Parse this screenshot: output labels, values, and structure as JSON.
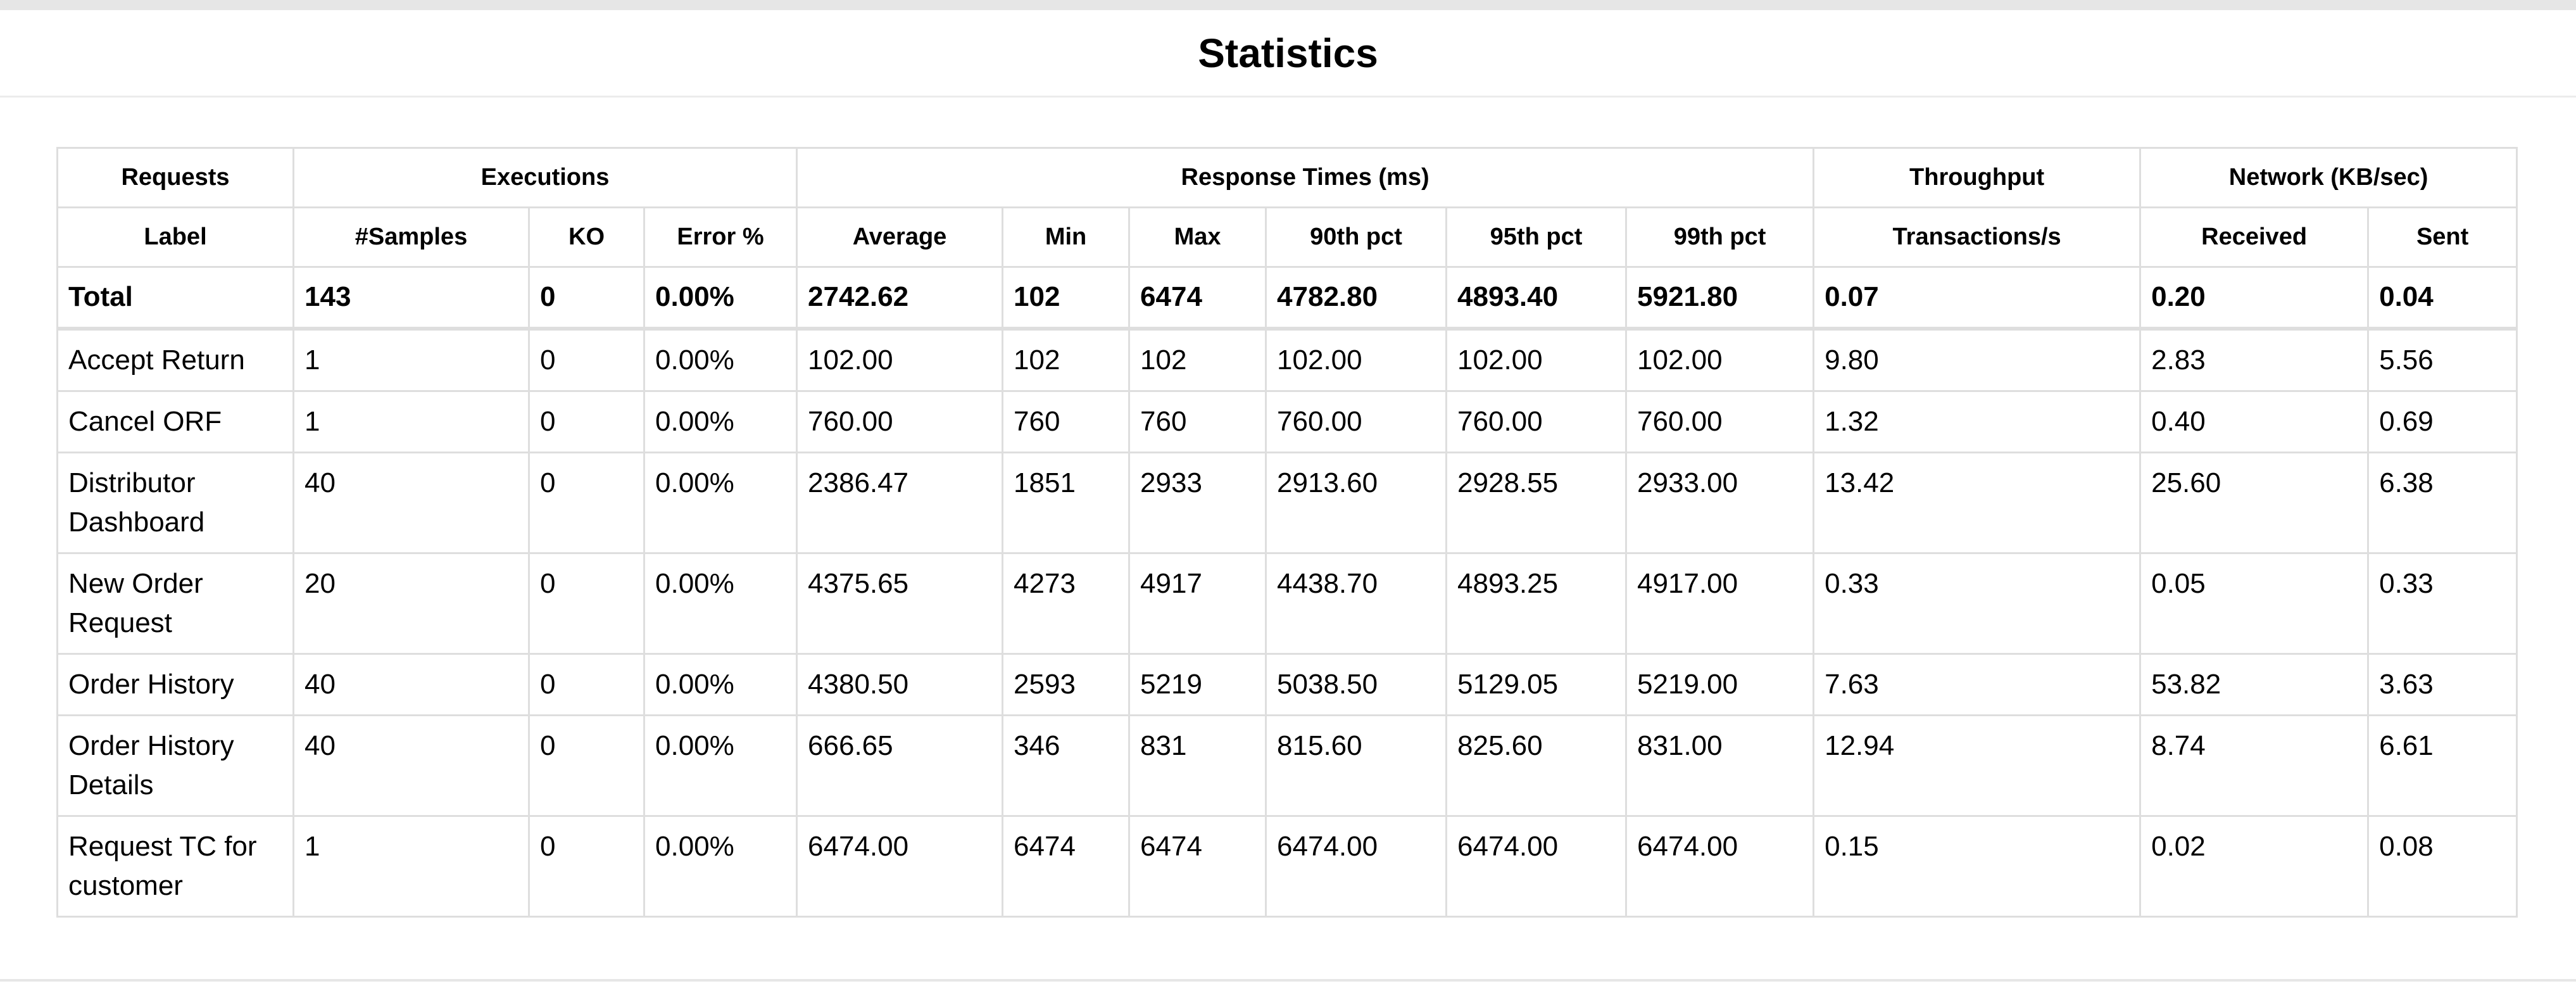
{
  "page": {
    "title": "Statistics"
  },
  "table": {
    "group_headers": [
      {
        "label": "Requests",
        "span": 1
      },
      {
        "label": "Executions",
        "span": 3
      },
      {
        "label": "Response Times (ms)",
        "span": 6
      },
      {
        "label": "Throughput",
        "span": 1
      },
      {
        "label": "Network (KB/sec)",
        "span": 2
      }
    ],
    "columns": [
      "Label",
      "#Samples",
      "KO",
      "Error %",
      "Average",
      "Min",
      "Max",
      "90th pct",
      "95th pct",
      "99th pct",
      "Transactions/s",
      "Received",
      "Sent"
    ],
    "total": [
      "Total",
      "143",
      "0",
      "0.00%",
      "2742.62",
      "102",
      "6474",
      "4782.80",
      "4893.40",
      "5921.80",
      "0.07",
      "0.20",
      "0.04"
    ],
    "rows": [
      [
        "Accept Return",
        "1",
        "0",
        "0.00%",
        "102.00",
        "102",
        "102",
        "102.00",
        "102.00",
        "102.00",
        "9.80",
        "2.83",
        "5.56"
      ],
      [
        "Cancel ORF",
        "1",
        "0",
        "0.00%",
        "760.00",
        "760",
        "760",
        "760.00",
        "760.00",
        "760.00",
        "1.32",
        "0.40",
        "0.69"
      ],
      [
        "Distributor Dashboard",
        "40",
        "0",
        "0.00%",
        "2386.47",
        "1851",
        "2933",
        "2913.60",
        "2928.55",
        "2933.00",
        "13.42",
        "25.60",
        "6.38"
      ],
      [
        "New Order Request",
        "20",
        "0",
        "0.00%",
        "4375.65",
        "4273",
        "4917",
        "4438.70",
        "4893.25",
        "4917.00",
        "0.33",
        "0.05",
        "0.33"
      ],
      [
        "Order History",
        "40",
        "0",
        "0.00%",
        "4380.50",
        "2593",
        "5219",
        "5038.50",
        "5129.05",
        "5219.00",
        "7.63",
        "53.82",
        "3.63"
      ],
      [
        "Order History Details",
        "40",
        "0",
        "0.00%",
        "666.65",
        "346",
        "831",
        "815.60",
        "825.60",
        "831.00",
        "12.94",
        "8.74",
        "6.61"
      ],
      [
        "Request TC for customer",
        "1",
        "0",
        "0.00%",
        "6474.00",
        "6474",
        "6474",
        "6474.00",
        "6474.00",
        "6474.00",
        "0.15",
        "0.02",
        "0.08"
      ]
    ]
  }
}
